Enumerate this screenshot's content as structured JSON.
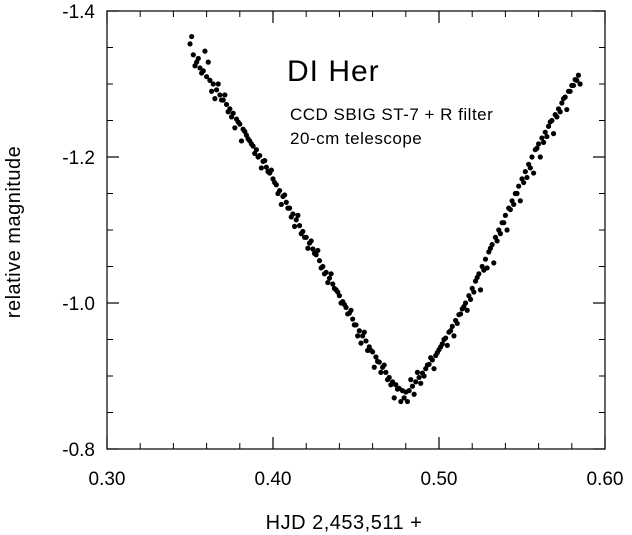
{
  "chart_data": {
    "type": "scatter",
    "title": "DI Her",
    "annotations": [
      "CCD SBIG ST-7 + R filter",
      "20-cm telescope"
    ],
    "xlabel": "HJD 2,453,511 +",
    "ylabel": "relative magnitude",
    "xlim": [
      0.3,
      0.6
    ],
    "ylim": [
      -1.4,
      -0.8
    ],
    "y_inverted": true,
    "x_ticks": [
      0.3,
      0.4,
      0.5,
      0.6
    ],
    "x_tick_labels": [
      "0.30",
      "0.40",
      "0.50",
      "0.60"
    ],
    "y_ticks": [
      -1.4,
      -1.2,
      -1.0,
      -0.8
    ],
    "y_tick_labels": [
      "-1.4",
      "-1.2",
      "-1.0",
      "-0.8"
    ],
    "grid": false,
    "marker_color": "#000000",
    "series": [
      {
        "x": [
          0.35,
          0.352,
          0.354,
          0.356,
          0.358,
          0.36,
          0.362,
          0.364,
          0.366,
          0.368,
          0.37,
          0.372,
          0.374,
          0.376,
          0.378,
          0.38,
          0.382,
          0.384,
          0.386,
          0.388,
          0.39,
          0.392,
          0.394,
          0.396,
          0.398,
          0.4,
          0.402,
          0.404,
          0.406,
          0.408,
          0.41,
          0.412,
          0.414,
          0.416,
          0.418,
          0.42,
          0.422,
          0.424,
          0.426,
          0.428,
          0.43,
          0.432,
          0.434,
          0.436,
          0.438,
          0.44,
          0.442,
          0.444,
          0.446,
          0.448,
          0.45,
          0.452,
          0.454,
          0.456,
          0.458,
          0.46,
          0.462,
          0.464,
          0.466,
          0.468,
          0.47,
          0.472,
          0.474,
          0.476,
          0.478,
          0.48,
          0.482,
          0.484,
          0.486,
          0.488,
          0.49,
          0.492,
          0.494,
          0.496,
          0.498,
          0.5,
          0.502,
          0.504,
          0.506,
          0.508,
          0.51,
          0.512,
          0.514,
          0.516,
          0.518,
          0.52,
          0.522,
          0.524,
          0.526,
          0.528,
          0.53,
          0.532,
          0.534,
          0.536,
          0.538,
          0.54,
          0.542,
          0.544,
          0.546,
          0.548,
          0.55,
          0.552,
          0.554,
          0.556,
          0.558,
          0.56,
          0.562,
          0.564,
          0.566,
          0.568,
          0.57,
          0.572,
          0.574,
          0.576,
          0.578,
          0.58,
          0.582,
          0.584,
          0.351,
          0.355,
          0.359,
          0.363,
          0.367,
          0.371,
          0.375,
          0.379,
          0.383,
          0.387,
          0.391,
          0.395,
          0.399,
          0.403,
          0.407,
          0.411,
          0.415,
          0.419,
          0.423,
          0.427,
          0.431,
          0.435,
          0.439,
          0.443,
          0.447,
          0.451,
          0.455,
          0.459,
          0.463,
          0.467,
          0.471,
          0.475,
          0.479,
          0.483,
          0.487,
          0.491,
          0.495,
          0.499,
          0.503,
          0.507,
          0.511,
          0.515,
          0.519,
          0.523,
          0.527,
          0.531,
          0.535,
          0.539,
          0.543,
          0.547,
          0.551,
          0.555,
          0.559,
          0.563,
          0.567,
          0.571,
          0.575,
          0.579,
          0.583,
          0.353,
          0.357,
          0.361,
          0.365,
          0.369,
          0.373,
          0.377,
          0.381,
          0.385,
          0.389,
          0.393,
          0.397,
          0.401,
          0.405,
          0.409,
          0.413,
          0.417,
          0.421,
          0.425,
          0.429,
          0.433,
          0.437,
          0.441,
          0.445,
          0.449,
          0.453,
          0.457,
          0.461,
          0.465,
          0.469,
          0.473,
          0.477,
          0.481,
          0.485,
          0.489,
          0.493,
          0.497,
          0.501,
          0.505,
          0.509,
          0.513,
          0.517,
          0.521,
          0.525,
          0.529,
          0.533,
          0.537,
          0.541,
          0.545,
          0.549,
          0.553,
          0.557,
          0.561,
          0.565,
          0.569,
          0.573,
          0.577,
          0.581,
          0.585
        ],
        "y": [
          -1.355,
          -1.34,
          -1.33,
          -1.322,
          -1.318,
          -1.31,
          -1.305,
          -1.3,
          -1.292,
          -1.285,
          -1.278,
          -1.272,
          -1.266,
          -1.26,
          -1.252,
          -1.245,
          -1.238,
          -1.23,
          -1.222,
          -1.215,
          -1.21,
          -1.202,
          -1.194,
          -1.186,
          -1.178,
          -1.17,
          -1.162,
          -1.154,
          -1.146,
          -1.138,
          -1.13,
          -1.122,
          -1.114,
          -1.106,
          -1.098,
          -1.09,
          -1.082,
          -1.074,
          -1.066,
          -1.058,
          -1.05,
          -1.042,
          -1.034,
          -1.026,
          -1.018,
          -1.01,
          -1.002,
          -0.994,
          -0.986,
          -0.978,
          -0.97,
          -0.962,
          -0.955,
          -0.948,
          -0.94,
          -0.933,
          -0.926,
          -0.919,
          -0.912,
          -0.905,
          -0.898,
          -0.892,
          -0.888,
          -0.883,
          -0.88,
          -0.878,
          -0.88,
          -0.886,
          -0.892,
          -0.898,
          -0.904,
          -0.91,
          -0.916,
          -0.922,
          -0.928,
          -0.936,
          -0.944,
          -0.952,
          -0.96,
          -0.968,
          -0.976,
          -0.984,
          -0.992,
          -1.0,
          -1.01,
          -1.02,
          -1.03,
          -1.04,
          -1.05,
          -1.06,
          -1.07,
          -1.08,
          -1.09,
          -1.1,
          -1.11,
          -1.12,
          -1.13,
          -1.14,
          -1.15,
          -1.16,
          -1.17,
          -1.18,
          -1.19,
          -1.2,
          -1.21,
          -1.218,
          -1.226,
          -1.234,
          -1.242,
          -1.25,
          -1.258,
          -1.266,
          -1.274,
          -1.282,
          -1.29,
          -1.298,
          -1.306,
          -1.312,
          -1.365,
          -1.335,
          -1.345,
          -1.29,
          -1.3,
          -1.285,
          -1.255,
          -1.248,
          -1.235,
          -1.218,
          -1.2,
          -1.195,
          -1.182,
          -1.15,
          -1.148,
          -1.118,
          -1.12,
          -1.09,
          -1.085,
          -1.072,
          -1.04,
          -1.04,
          -1.015,
          -0.998,
          -0.99,
          -0.955,
          -0.96,
          -0.935,
          -0.92,
          -0.915,
          -0.888,
          -0.882,
          -0.87,
          -0.895,
          -0.905,
          -0.9,
          -0.925,
          -0.932,
          -0.95,
          -0.962,
          -0.972,
          -0.995,
          -1.005,
          -1.035,
          -1.045,
          -1.075,
          -1.085,
          -1.11,
          -1.128,
          -1.15,
          -1.165,
          -1.185,
          -1.212,
          -1.22,
          -1.248,
          -1.255,
          -1.28,
          -1.29,
          -1.305,
          -1.325,
          -1.315,
          -1.33,
          -1.28,
          -1.278,
          -1.262,
          -1.24,
          -1.222,
          -1.225,
          -1.205,
          -1.185,
          -1.18,
          -1.165,
          -1.135,
          -1.13,
          -1.105,
          -1.095,
          -1.075,
          -1.068,
          -1.048,
          -1.028,
          -1.02,
          -1.0,
          -0.985,
          -0.97,
          -0.945,
          -0.935,
          -0.912,
          -0.905,
          -0.895,
          -0.87,
          -0.865,
          -0.865,
          -0.875,
          -0.89,
          -0.915,
          -0.91,
          -0.94,
          -0.942,
          -0.955,
          -0.985,
          -0.99,
          -1.015,
          -1.018,
          -1.048,
          -1.055,
          -1.095,
          -1.1,
          -1.135,
          -1.14,
          -1.172,
          -1.178,
          -1.2,
          -1.228,
          -1.232,
          -1.262,
          -1.265,
          -1.298,
          -1.3
        ]
      }
    ]
  }
}
